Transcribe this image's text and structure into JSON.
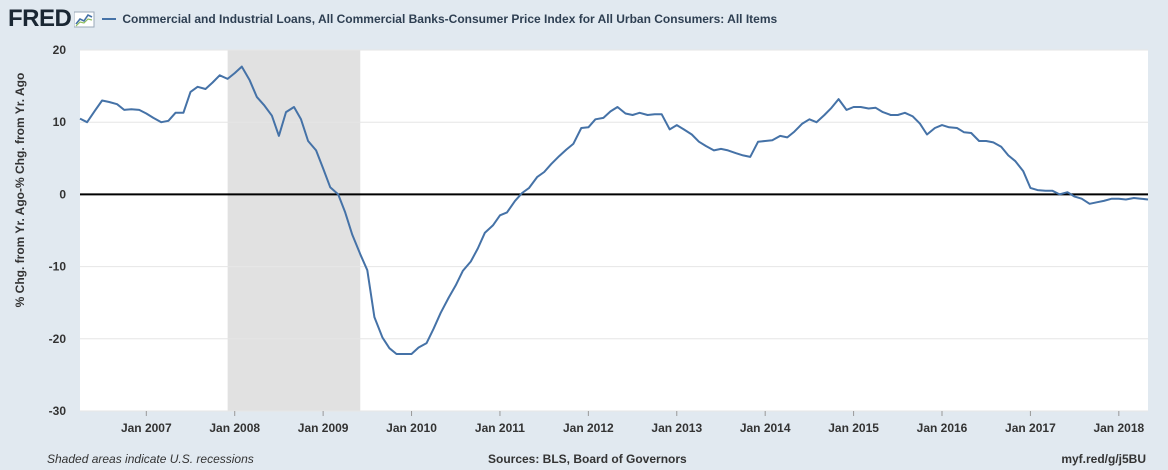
{
  "header": {
    "logo": "FRED",
    "series_label": "Commercial and Industrial Loans, All Commercial Banks-Consumer Price Index for All Urban Consumers: All Items"
  },
  "footer": {
    "recession_note": "Shaded areas indicate U.S. recessions",
    "sources": "Sources: BLS, Board of Governors",
    "link": "myf.red/g/j5BU"
  },
  "colors": {
    "background": "#e1e9f0",
    "plot_bg": "#ffffff",
    "series": "#4572a7",
    "recession": "#e1e1e1",
    "zero_line": "#000000"
  },
  "chart_data": {
    "type": "line",
    "title": "Commercial and Industrial Loans, All Commercial Banks-Consumer Price Index for All Urban Consumers: All Items",
    "xlabel": "",
    "ylabel": "% Chg. from Yr. Ago-% Chg. from Yr. Ago",
    "ylim": [
      -30,
      20
    ],
    "yticks": [
      -30,
      -20,
      -10,
      0,
      10,
      20
    ],
    "xlim": [
      2006.25,
      2018.33
    ],
    "xticks": [
      {
        "label": "Jan 2007",
        "value": 2007.0
      },
      {
        "label": "Jan 2008",
        "value": 2008.0
      },
      {
        "label": "Jan 2009",
        "value": 2009.0
      },
      {
        "label": "Jan 2010",
        "value": 2010.0
      },
      {
        "label": "Jan 2011",
        "value": 2011.0
      },
      {
        "label": "Jan 2012",
        "value": 2012.0
      },
      {
        "label": "Jan 2013",
        "value": 2013.0
      },
      {
        "label": "Jan 2014",
        "value": 2014.0
      },
      {
        "label": "Jan 2015",
        "value": 2015.0
      },
      {
        "label": "Jan 2016",
        "value": 2016.0
      },
      {
        "label": "Jan 2017",
        "value": 2017.0
      },
      {
        "label": "Jan 2018",
        "value": 2018.0
      }
    ],
    "recessions": [
      [
        2007.92,
        2009.42
      ]
    ],
    "zero_line": 0,
    "series": [
      {
        "name": "Commercial and Industrial Loans, All Commercial Banks-Consumer Price Index for All Urban Consumers: All Items",
        "points": [
          [
            2006.25,
            10.5
          ],
          [
            2006.33,
            10.0
          ],
          [
            2006.42,
            11.6
          ],
          [
            2006.5,
            13.0
          ],
          [
            2006.58,
            12.8
          ],
          [
            2006.67,
            12.5
          ],
          [
            2006.75,
            11.7
          ],
          [
            2006.83,
            11.8
          ],
          [
            2006.92,
            11.7
          ],
          [
            2007.0,
            11.2
          ],
          [
            2007.08,
            10.6
          ],
          [
            2007.17,
            10.0
          ],
          [
            2007.25,
            10.2
          ],
          [
            2007.33,
            11.3
          ],
          [
            2007.42,
            11.3
          ],
          [
            2007.5,
            14.2
          ],
          [
            2007.58,
            14.9
          ],
          [
            2007.67,
            14.6
          ],
          [
            2007.75,
            15.5
          ],
          [
            2007.83,
            16.5
          ],
          [
            2007.92,
            16.0
          ],
          [
            2008.0,
            16.8
          ],
          [
            2008.08,
            17.7
          ],
          [
            2008.17,
            15.8
          ],
          [
            2008.25,
            13.5
          ],
          [
            2008.33,
            12.4
          ],
          [
            2008.42,
            10.9
          ],
          [
            2008.5,
            8.1
          ],
          [
            2008.58,
            11.4
          ],
          [
            2008.67,
            12.1
          ],
          [
            2008.75,
            10.4
          ],
          [
            2008.83,
            7.4
          ],
          [
            2008.92,
            6.1
          ],
          [
            2009.0,
            3.6
          ],
          [
            2009.08,
            1.0
          ],
          [
            2009.17,
            0.0
          ],
          [
            2009.25,
            -2.5
          ],
          [
            2009.33,
            -5.6
          ],
          [
            2009.42,
            -8.3
          ],
          [
            2009.5,
            -10.5
          ],
          [
            2009.58,
            -17.0
          ],
          [
            2009.67,
            -19.8
          ],
          [
            2009.75,
            -21.3
          ],
          [
            2009.83,
            -22.1
          ],
          [
            2009.92,
            -22.1
          ],
          [
            2010.0,
            -22.1
          ],
          [
            2010.08,
            -21.2
          ],
          [
            2010.17,
            -20.6
          ],
          [
            2010.25,
            -18.6
          ],
          [
            2010.33,
            -16.4
          ],
          [
            2010.42,
            -14.3
          ],
          [
            2010.5,
            -12.6
          ],
          [
            2010.58,
            -10.6
          ],
          [
            2010.67,
            -9.3
          ],
          [
            2010.75,
            -7.5
          ],
          [
            2010.83,
            -5.3
          ],
          [
            2010.92,
            -4.3
          ],
          [
            2011.0,
            -2.9
          ],
          [
            2011.08,
            -2.5
          ],
          [
            2011.17,
            -0.9
          ],
          [
            2011.25,
            0.2
          ],
          [
            2011.33,
            0.9
          ],
          [
            2011.42,
            2.4
          ],
          [
            2011.5,
            3.1
          ],
          [
            2011.58,
            4.2
          ],
          [
            2011.67,
            5.3
          ],
          [
            2011.75,
            6.2
          ],
          [
            2011.83,
            7.0
          ],
          [
            2011.92,
            9.2
          ],
          [
            2012.0,
            9.3
          ],
          [
            2012.08,
            10.4
          ],
          [
            2012.17,
            10.6
          ],
          [
            2012.25,
            11.5
          ],
          [
            2012.33,
            12.1
          ],
          [
            2012.42,
            11.2
          ],
          [
            2012.5,
            11.0
          ],
          [
            2012.58,
            11.3
          ],
          [
            2012.67,
            11.0
          ],
          [
            2012.75,
            11.1
          ],
          [
            2012.83,
            11.1
          ],
          [
            2012.92,
            9.0
          ],
          [
            2013.0,
            9.6
          ],
          [
            2013.08,
            9.0
          ],
          [
            2013.17,
            8.3
          ],
          [
            2013.25,
            7.3
          ],
          [
            2013.33,
            6.7
          ],
          [
            2013.42,
            6.1
          ],
          [
            2013.5,
            6.3
          ],
          [
            2013.58,
            6.1
          ],
          [
            2013.67,
            5.7
          ],
          [
            2013.75,
            5.4
          ],
          [
            2013.83,
            5.2
          ],
          [
            2013.92,
            7.3
          ],
          [
            2014.0,
            7.4
          ],
          [
            2014.08,
            7.5
          ],
          [
            2014.17,
            8.1
          ],
          [
            2014.25,
            7.9
          ],
          [
            2014.33,
            8.7
          ],
          [
            2014.42,
            9.8
          ],
          [
            2014.5,
            10.4
          ],
          [
            2014.58,
            10.0
          ],
          [
            2014.67,
            11.0
          ],
          [
            2014.75,
            12.0
          ],
          [
            2014.83,
            13.2
          ],
          [
            2014.92,
            11.7
          ],
          [
            2015.0,
            12.1
          ],
          [
            2015.08,
            12.1
          ],
          [
            2015.17,
            11.9
          ],
          [
            2015.25,
            12.0
          ],
          [
            2015.33,
            11.4
          ],
          [
            2015.42,
            11.0
          ],
          [
            2015.5,
            11.0
          ],
          [
            2015.58,
            11.3
          ],
          [
            2015.67,
            10.8
          ],
          [
            2015.75,
            9.8
          ],
          [
            2015.83,
            8.3
          ],
          [
            2015.92,
            9.2
          ],
          [
            2016.0,
            9.6
          ],
          [
            2016.08,
            9.3
          ],
          [
            2016.17,
            9.2
          ],
          [
            2016.25,
            8.6
          ],
          [
            2016.33,
            8.5
          ],
          [
            2016.42,
            7.4
          ],
          [
            2016.5,
            7.4
          ],
          [
            2016.58,
            7.2
          ],
          [
            2016.67,
            6.6
          ],
          [
            2016.75,
            5.4
          ],
          [
            2016.83,
            4.6
          ],
          [
            2016.92,
            3.2
          ],
          [
            2017.0,
            0.9
          ],
          [
            2017.08,
            0.6
          ],
          [
            2017.17,
            0.5
          ],
          [
            2017.25,
            0.5
          ],
          [
            2017.33,
            0.0
          ],
          [
            2017.42,
            0.3
          ],
          [
            2017.5,
            -0.3
          ],
          [
            2017.58,
            -0.6
          ],
          [
            2017.67,
            -1.3
          ],
          [
            2017.75,
            -1.1
          ],
          [
            2017.83,
            -0.9
          ],
          [
            2017.92,
            -0.6
          ],
          [
            2018.0,
            -0.6
          ],
          [
            2018.08,
            -0.7
          ],
          [
            2018.17,
            -0.5
          ],
          [
            2018.25,
            -0.6
          ],
          [
            2018.33,
            -0.7
          ]
        ]
      }
    ]
  }
}
